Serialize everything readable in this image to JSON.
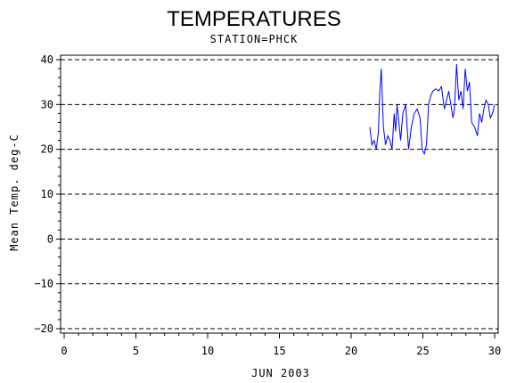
{
  "chart_data": {
    "type": "line",
    "title": "TEMPERATURES",
    "subtitle": "STATION=PHCK",
    "xlabel": "JUN 2003",
    "ylabel": "Mean Temp. deg-C",
    "xlim": [
      0,
      30
    ],
    "ylim": [
      -20,
      40
    ],
    "xticks": [
      0,
      5,
      10,
      15,
      20,
      25,
      30
    ],
    "yticks": [
      -20,
      -10,
      0,
      10,
      20,
      30,
      40
    ],
    "grid": "horizontal dashed",
    "line_color": "#0000ff",
    "series": [
      {
        "x": [
          21.3,
          21.45,
          21.6,
          21.75,
          21.9,
          22.0,
          22.1,
          22.25,
          22.4,
          22.55,
          22.7,
          22.85,
          23.0,
          23.1,
          23.2,
          23.3,
          23.45,
          23.6,
          23.8,
          24.0,
          24.2,
          24.4,
          24.6,
          24.8,
          24.95,
          25.1,
          25.25,
          25.4,
          25.55,
          25.7,
          25.9,
          26.1,
          26.3,
          26.5,
          26.65,
          26.8,
          26.95,
          27.1,
          27.2,
          27.35,
          27.5,
          27.65,
          27.8,
          27.95,
          28.1,
          28.25,
          28.4,
          28.6,
          28.8,
          28.95,
          29.1,
          29.25,
          29.4,
          29.55,
          29.7,
          29.85,
          30.0
        ],
        "values": [
          25,
          21,
          22,
          20,
          24,
          33,
          38,
          25,
          21,
          23,
          22,
          20,
          28,
          24,
          30,
          27,
          22,
          28,
          30,
          20,
          25,
          28,
          29,
          27,
          20,
          19,
          21,
          30,
          32,
          33,
          33.5,
          33,
          34,
          29,
          31,
          33,
          30,
          27,
          29,
          39,
          31,
          33,
          29,
          38,
          33,
          35,
          26,
          25,
          23,
          28,
          26,
          29,
          31,
          30,
          27,
          28,
          30
        ]
      }
    ]
  }
}
